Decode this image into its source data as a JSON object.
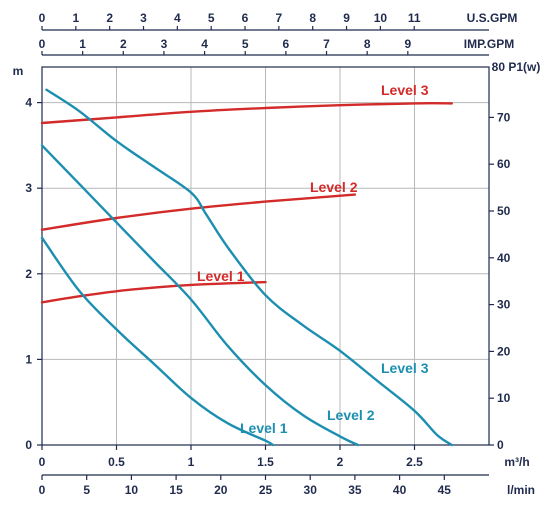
{
  "chart_data": {
    "type": "line",
    "title": "",
    "colors": {
      "head": "#1c8fb0",
      "power": "#d32a2a",
      "axis": "#1f2a4d",
      "grid": "#b8b8b8"
    },
    "grid": true,
    "axes": {
      "x_m3h": {
        "label": "m³/h",
        "range": [
          0,
          2.75
        ],
        "ticks": [
          "0",
          "0.5",
          "1",
          "1.5",
          "2",
          "2.5"
        ]
      },
      "x_lmin": {
        "label": "l/min",
        "range": [
          0,
          45.8
        ],
        "ticks": [
          "0",
          "5",
          "10",
          "15",
          "20",
          "25",
          "30",
          "35",
          "40",
          "45"
        ]
      },
      "x_usgpm": {
        "label": "U.S.GPM",
        "range": [
          0,
          12.1
        ],
        "ticks": [
          "0",
          "1",
          "2",
          "3",
          "4",
          "5",
          "6",
          "7",
          "8",
          "9",
          "10",
          "11"
        ]
      },
      "x_impgpm": {
        "label": "IMP.GPM",
        "range": [
          0,
          10.1
        ],
        "ticks": [
          "0",
          "1",
          "2",
          "3",
          "4",
          "5",
          "6",
          "7",
          "8",
          "9"
        ]
      },
      "y_head": {
        "label": "m",
        "range": [
          0,
          4.3
        ],
        "ticks": [
          "0",
          "1",
          "2",
          "3",
          "4"
        ]
      },
      "y_power": {
        "label": "80 P1(w)",
        "range": [
          0,
          80
        ],
        "ticks": [
          "0",
          "10",
          "20",
          "30",
          "40",
          "50",
          "60",
          "70"
        ]
      }
    },
    "head_series": [
      {
        "name": "Level 1",
        "points": [
          [
            0,
            2.42
          ],
          [
            0.25,
            1.8
          ],
          [
            0.5,
            1.35
          ],
          [
            0.75,
            0.95
          ],
          [
            1.0,
            0.55
          ],
          [
            1.25,
            0.25
          ],
          [
            1.5,
            0.05
          ],
          [
            1.55,
            0.0
          ]
        ]
      },
      {
        "name": "Level 2",
        "points": [
          [
            0,
            3.5
          ],
          [
            0.25,
            3.05
          ],
          [
            0.5,
            2.6
          ],
          [
            0.75,
            2.15
          ],
          [
            1.0,
            1.7
          ],
          [
            1.25,
            1.15
          ],
          [
            1.5,
            0.7
          ],
          [
            1.75,
            0.35
          ],
          [
            2.0,
            0.1
          ],
          [
            2.12,
            0.0
          ]
        ]
      },
      {
        "name": "Level 3",
        "points": [
          [
            0.03,
            4.15
          ],
          [
            0.25,
            3.9
          ],
          [
            0.5,
            3.55
          ],
          [
            0.75,
            3.25
          ],
          [
            1.0,
            2.95
          ],
          [
            1.1,
            2.7
          ],
          [
            1.25,
            2.3
          ],
          [
            1.5,
            1.75
          ],
          [
            1.75,
            1.4
          ],
          [
            2.0,
            1.1
          ],
          [
            2.25,
            0.75
          ],
          [
            2.5,
            0.4
          ],
          [
            2.65,
            0.12
          ],
          [
            2.75,
            0.0
          ]
        ]
      }
    ],
    "power_series": [
      {
        "name": "Level 1",
        "points": [
          [
            0,
            30.5
          ],
          [
            0.3,
            32.0
          ],
          [
            0.6,
            33.2
          ],
          [
            1.0,
            34.2
          ],
          [
            1.5,
            34.8
          ]
        ]
      },
      {
        "name": "Level 2",
        "points": [
          [
            0,
            46.0
          ],
          [
            0.5,
            48.5
          ],
          [
            1.0,
            50.5
          ],
          [
            1.5,
            52.0
          ],
          [
            2.1,
            53.5
          ]
        ]
      },
      {
        "name": "Level 3",
        "points": [
          [
            0,
            68.8
          ],
          [
            0.5,
            70.0
          ],
          [
            1.0,
            71.2
          ],
          [
            1.5,
            72.0
          ],
          [
            2.0,
            72.6
          ],
          [
            2.5,
            73.0
          ],
          [
            2.75,
            73.0
          ]
        ]
      }
    ],
    "labels": {
      "head": [
        "Level 1",
        "Level 2",
        "Level 3"
      ],
      "power": [
        "Level 1",
        "Level 2",
        "Level 3"
      ]
    }
  }
}
